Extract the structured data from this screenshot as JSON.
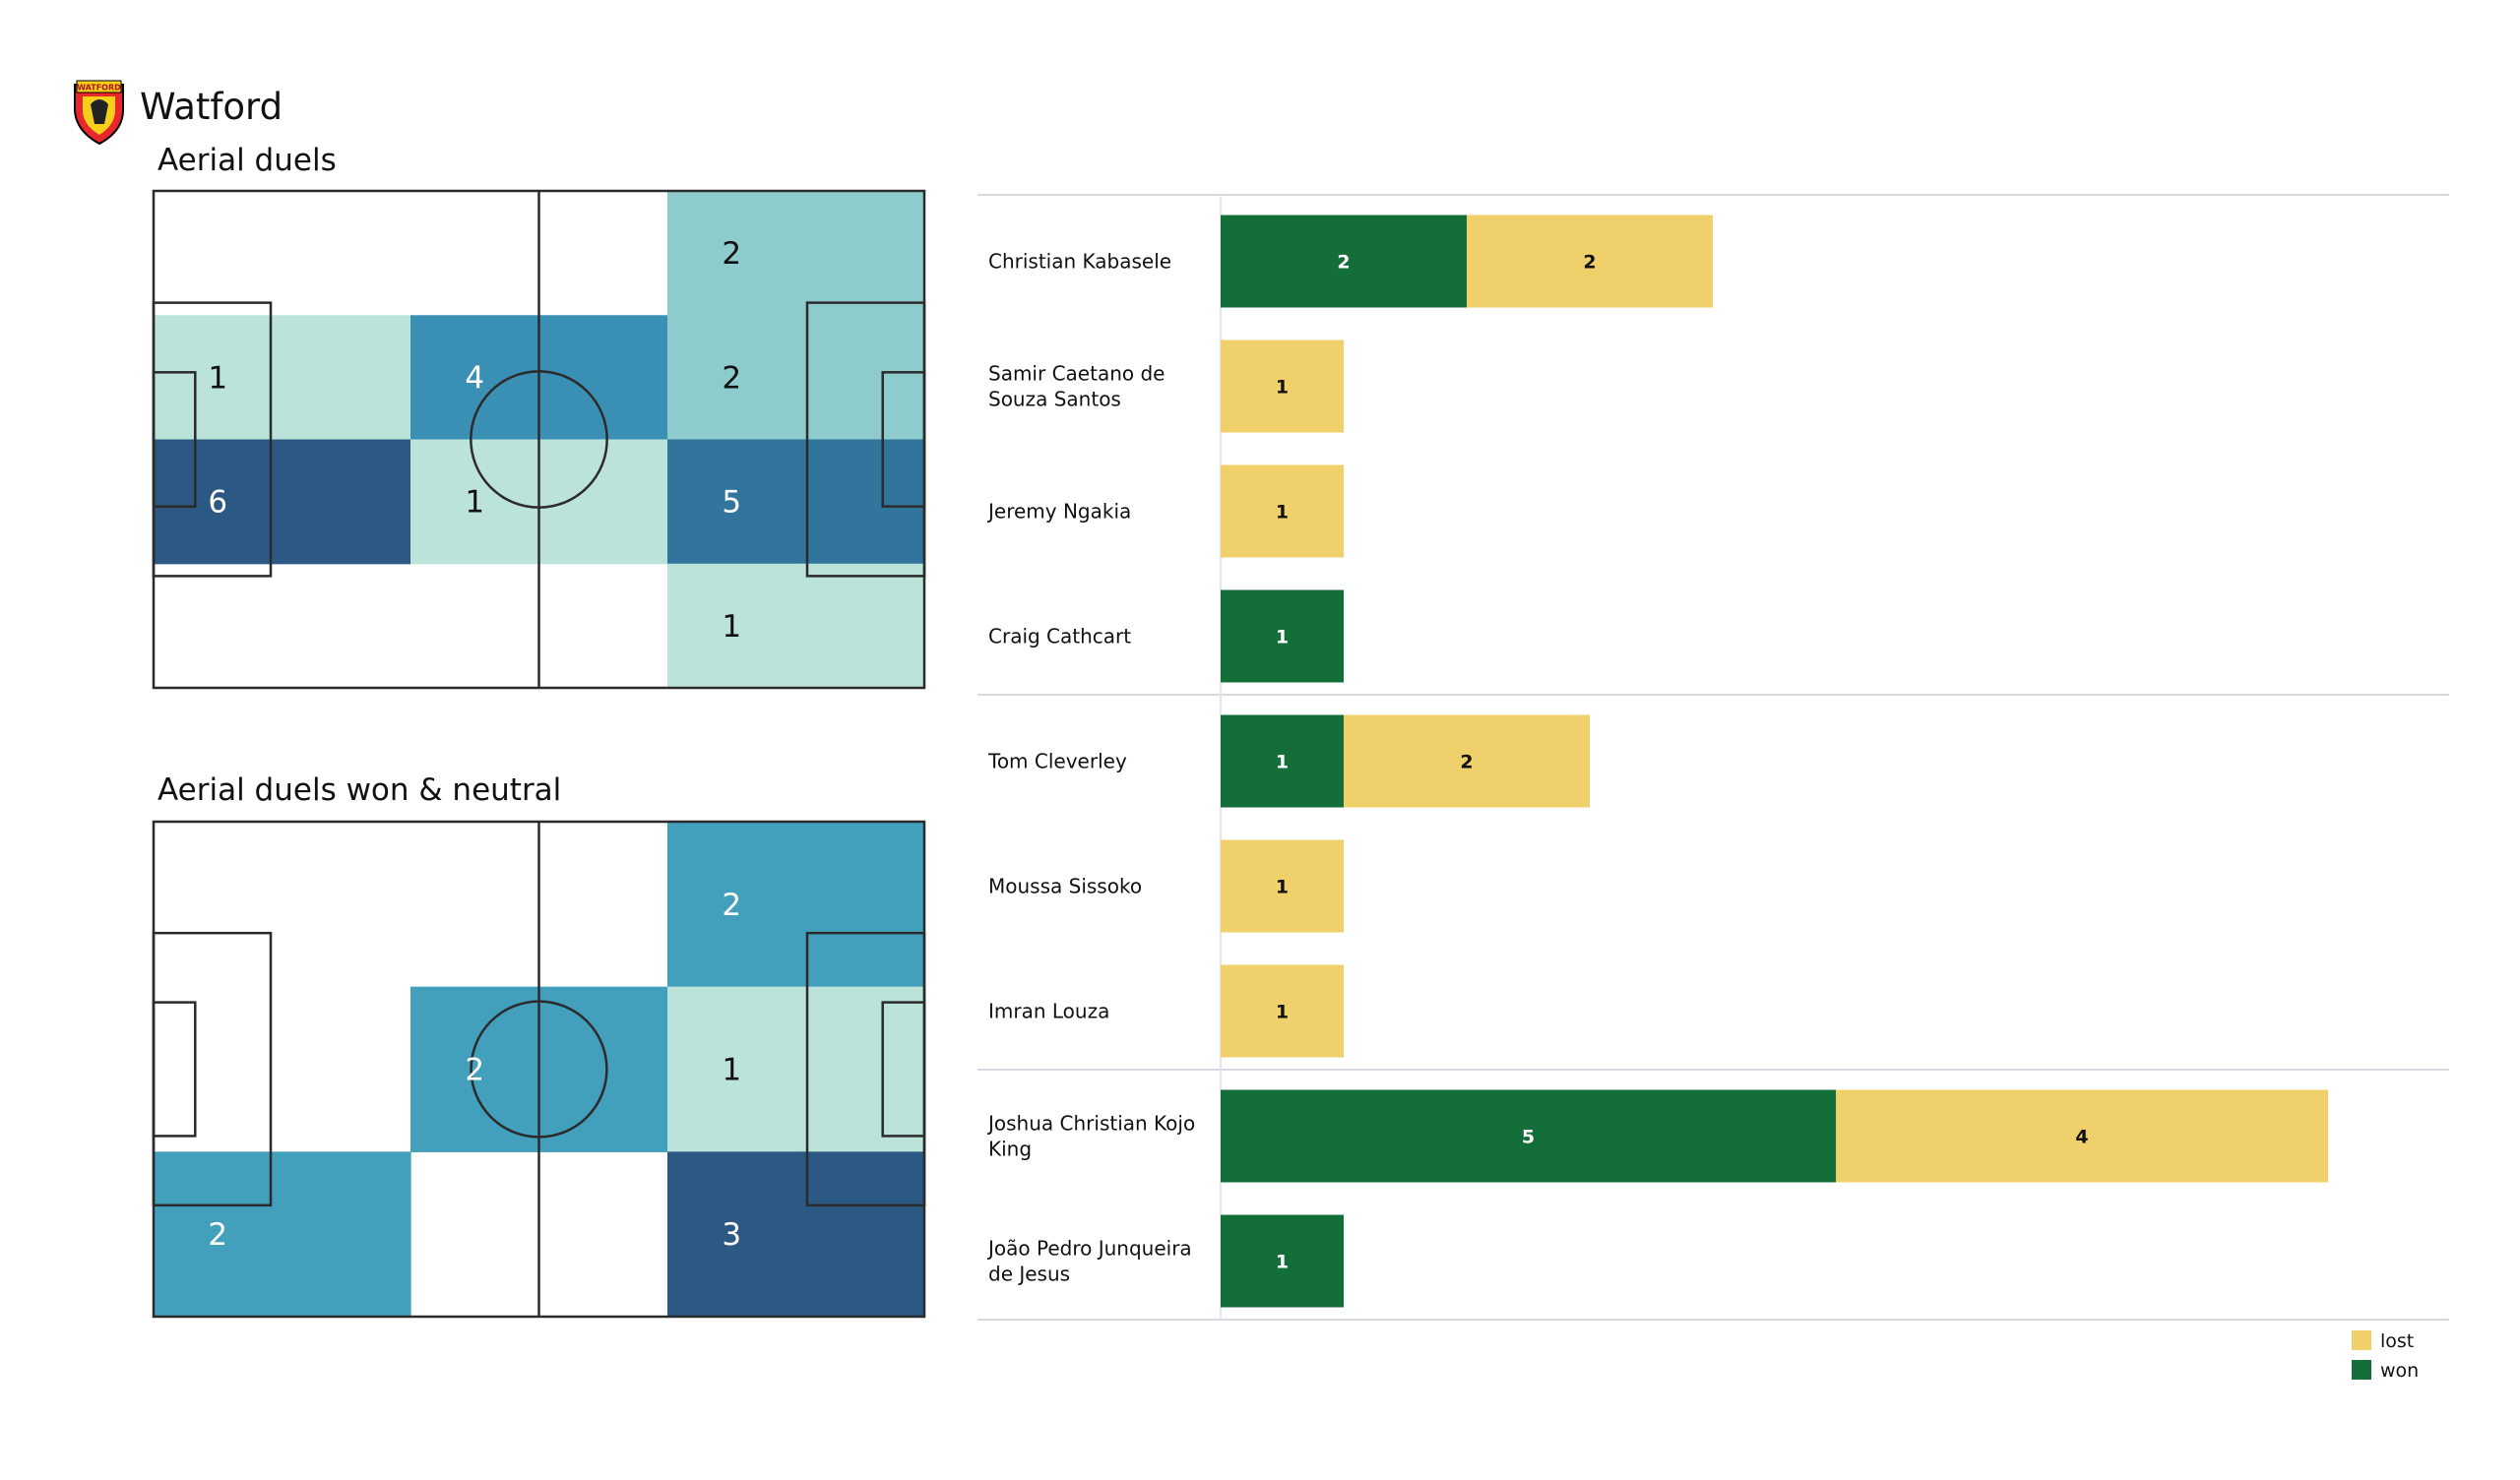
{
  "team": {
    "name": "Watford",
    "logo_text": "WATFORD",
    "logo_icon": "watford-crest-icon"
  },
  "colors": {
    "won": "#136e3a",
    "lost": "#f0d06a",
    "heat_1": "#bce3da",
    "heat_2a": "#8ecbcc",
    "heat_2b": "#43a0bc",
    "heat_4": "#3a90b4",
    "heat_5": "#31749c",
    "heat_6": "#2b5983",
    "line": "#2b2b2b",
    "divider": "#d8d8e0"
  },
  "chart_data": [
    {
      "type": "heatmap",
      "title": "Aerial duels",
      "columns": 6,
      "rows": 4,
      "cells": [
        {
          "col": 4,
          "row": 0,
          "value": 2,
          "color_key": "heat_2a"
        },
        {
          "col": 5,
          "row": 0,
          "value": 2,
          "color_key": "heat_2a"
        },
        {
          "col": 0,
          "row": 1,
          "value": 1,
          "color_key": "heat_1"
        },
        {
          "col": 1,
          "row": 1,
          "value": 1,
          "color_key": "heat_1"
        },
        {
          "col": 2,
          "row": 1,
          "value": 4,
          "color_key": "heat_4"
        },
        {
          "col": 3,
          "row": 1,
          "value": 4,
          "color_key": "heat_4"
        },
        {
          "col": 4,
          "row": 1,
          "value": 2,
          "color_key": "heat_2a"
        },
        {
          "col": 5,
          "row": 1,
          "value": 2,
          "color_key": "heat_2a"
        },
        {
          "col": 0,
          "row": 2,
          "value": 6,
          "color_key": "heat_6"
        },
        {
          "col": 1,
          "row": 2,
          "value": 6,
          "color_key": "heat_6"
        },
        {
          "col": 2,
          "row": 2,
          "value": 1,
          "color_key": "heat_1"
        },
        {
          "col": 3,
          "row": 2,
          "value": 1,
          "color_key": "heat_1"
        },
        {
          "col": 4,
          "row": 2,
          "value": 5,
          "color_key": "heat_5"
        },
        {
          "col": 5,
          "row": 2,
          "value": 5,
          "color_key": "heat_5"
        },
        {
          "col": 4,
          "row": 3,
          "value": 1,
          "color_key": "heat_1"
        },
        {
          "col": 5,
          "row": 3,
          "value": 1,
          "color_key": "heat_1"
        }
      ],
      "labels": [
        {
          "text": "2",
          "col": 4.5,
          "row": 0,
          "light": false
        },
        {
          "text": "1",
          "col": 0.5,
          "row": 1,
          "light": false
        },
        {
          "text": "4",
          "col": 2.5,
          "row": 1,
          "light": true
        },
        {
          "text": "2",
          "col": 4.5,
          "row": 1,
          "light": false
        },
        {
          "text": "6",
          "col": 0.5,
          "row": 2,
          "light": true
        },
        {
          "text": "1",
          "col": 2.5,
          "row": 2,
          "light": false
        },
        {
          "text": "5",
          "col": 4.5,
          "row": 2,
          "light": true
        },
        {
          "text": "1",
          "col": 4.5,
          "row": 3,
          "light": false
        }
      ]
    },
    {
      "type": "heatmap",
      "title": "Aerial duels won & neutral",
      "columns": 6,
      "rows": 3,
      "cells": [
        {
          "col": 4,
          "row": 0,
          "value": 2,
          "color_key": "heat_2b"
        },
        {
          "col": 5,
          "row": 0,
          "value": 2,
          "color_key": "heat_2b"
        },
        {
          "col": 2,
          "row": 1,
          "value": 2,
          "color_key": "heat_2b"
        },
        {
          "col": 3,
          "row": 1,
          "value": 2,
          "color_key": "heat_2b"
        },
        {
          "col": 4,
          "row": 1,
          "value": 1,
          "color_key": "heat_1"
        },
        {
          "col": 5,
          "row": 1,
          "value": 1,
          "color_key": "heat_1"
        },
        {
          "col": 0,
          "row": 2,
          "value": 2,
          "color_key": "heat_2b"
        },
        {
          "col": 1,
          "row": 2,
          "value": 2,
          "color_key": "heat_2b"
        },
        {
          "col": 4,
          "row": 2,
          "value": 3,
          "color_key": "heat_6"
        },
        {
          "col": 5,
          "row": 2,
          "value": 3,
          "color_key": "heat_6"
        }
      ],
      "labels": [
        {
          "text": "2",
          "col": 4.5,
          "row": 0,
          "light": true
        },
        {
          "text": "2",
          "col": 2.5,
          "row": 1,
          "light": true
        },
        {
          "text": "1",
          "col": 4.5,
          "row": 1,
          "light": false
        },
        {
          "text": "2",
          "col": 0.5,
          "row": 2,
          "light": true
        },
        {
          "text": "3",
          "col": 4.5,
          "row": 2,
          "light": true
        }
      ]
    },
    {
      "type": "bar",
      "orientation": "horizontal",
      "stacked": true,
      "xlim": [
        0,
        10
      ],
      "series_names": [
        "won",
        "lost"
      ],
      "groups": [
        [
          {
            "name": [
              "Christian Kabasele"
            ],
            "won": 2,
            "lost": 2
          },
          {
            "name": [
              "Samir Caetano de",
              "Souza Santos"
            ],
            "won": 0,
            "lost": 1
          },
          {
            "name": [
              "Jeremy Ngakia"
            ],
            "won": 0,
            "lost": 1
          },
          {
            "name": [
              "Craig Cathcart"
            ],
            "won": 1,
            "lost": 0
          }
        ],
        [
          {
            "name": [
              "Tom Cleverley"
            ],
            "won": 1,
            "lost": 2
          },
          {
            "name": [
              "Moussa Sissoko"
            ],
            "won": 0,
            "lost": 1
          },
          {
            "name": [
              "Imran Louza"
            ],
            "won": 0,
            "lost": 1
          }
        ],
        [
          {
            "name": [
              "Joshua Christian Kojo",
              "King"
            ],
            "won": 5,
            "lost": 4
          },
          {
            "name": [
              "João Pedro Junqueira",
              "de Jesus"
            ],
            "won": 1,
            "lost": 0
          }
        ]
      ],
      "legend": {
        "position": "bottom-right",
        "items": [
          {
            "label": "lost",
            "color_key": "lost"
          },
          {
            "label": "won",
            "color_key": "won"
          }
        ]
      }
    }
  ]
}
